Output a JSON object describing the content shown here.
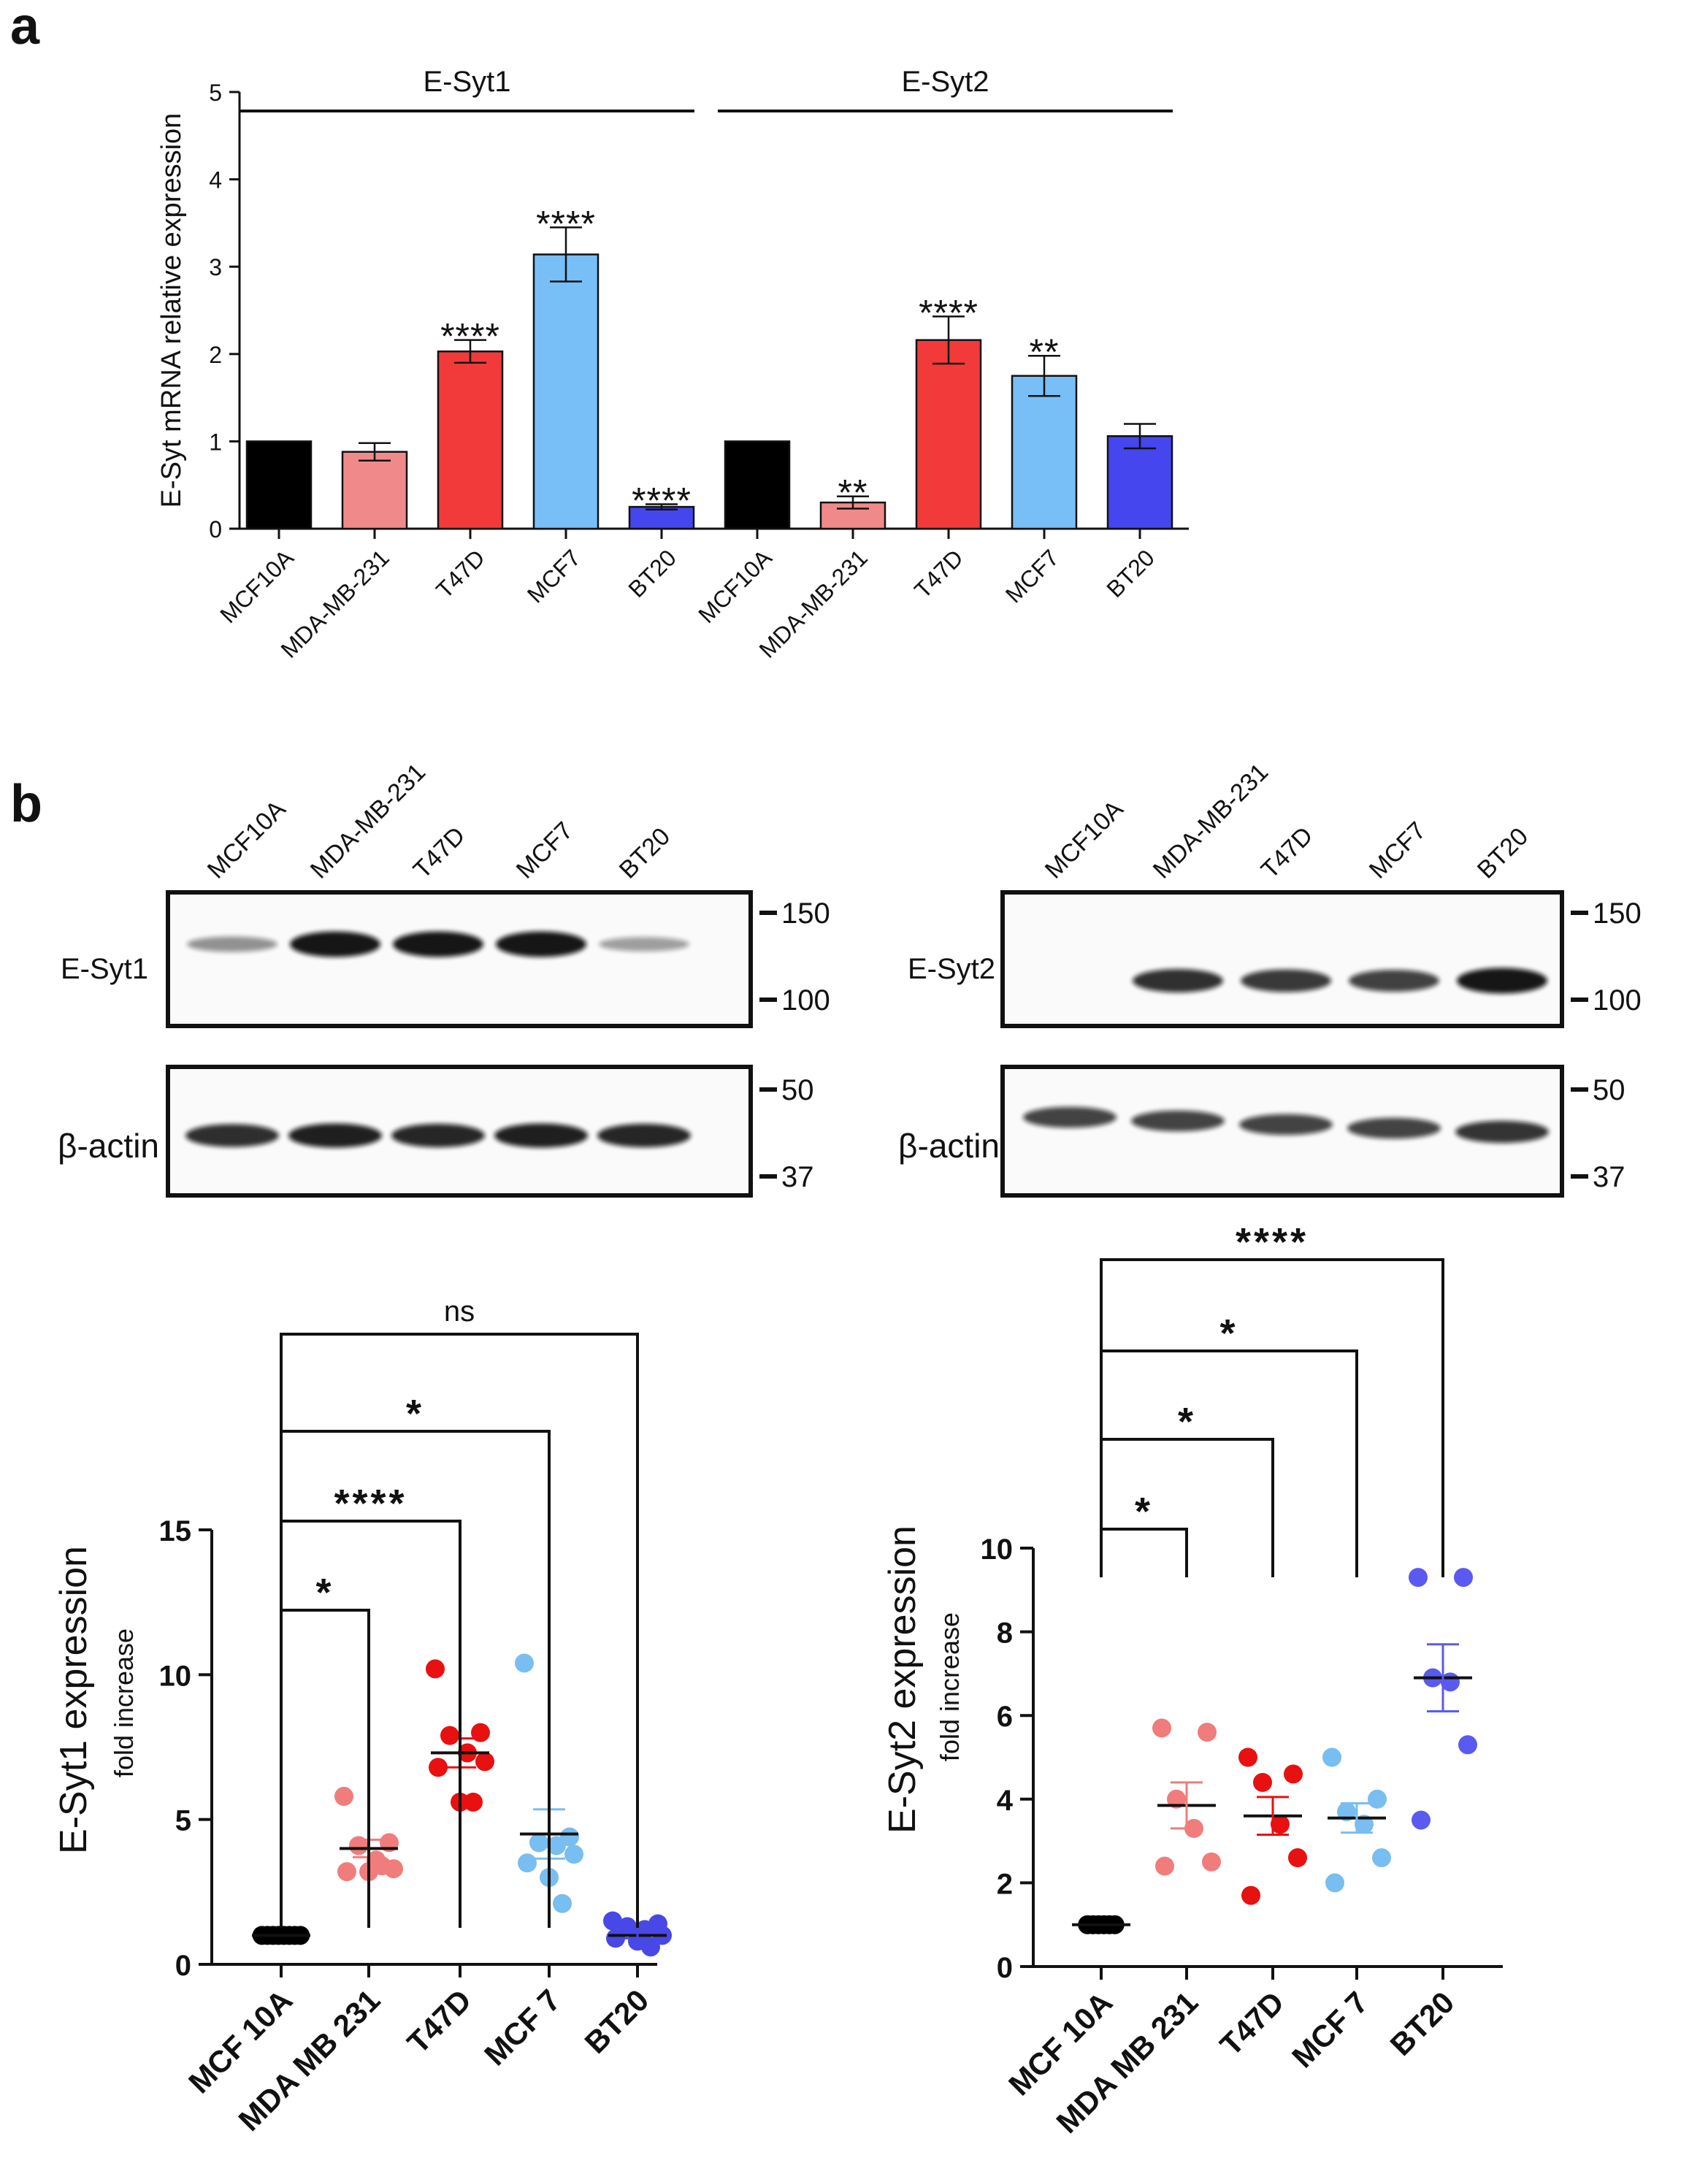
{
  "panel_labels": {
    "a": "a",
    "b": "b"
  },
  "colors": {
    "MCF10A": "#000000",
    "MDA-MB-231": "#f08a8a",
    "T47D": "#f23a3a",
    "MCF7": "#79bff7",
    "BT20": "#4646ee",
    "dot_MCF10A": "#000000",
    "dot_MDA": "#f07c7c",
    "dot_T47D": "#e81010",
    "dot_MCF7": "#78bef0",
    "dot_BT20_left": "#4848e6",
    "dot_BT20_right": "#5a5af0"
  },
  "chart_data": [
    {
      "id": "panel-a",
      "type": "bar",
      "ylabel": "E-Syt mRNA relative expression",
      "ylim": [
        0,
        5
      ],
      "yticks": [
        "0",
        "1",
        "2",
        "3",
        "4",
        "5"
      ],
      "groups": [
        {
          "name": "E-Syt1",
          "categories": [
            "MCF10A",
            "MDA-MB-231",
            "T47D",
            "MCF7",
            "BT20"
          ],
          "values": [
            1.0,
            0.88,
            2.03,
            3.14,
            0.25
          ],
          "errors": [
            0,
            0.1,
            0.13,
            0.31,
            0.03
          ],
          "significance": [
            "",
            "",
            "****",
            "****",
            "****"
          ]
        },
        {
          "name": "E-Syt2",
          "categories": [
            "MCF10A",
            "MDA-MB-231",
            "T47D",
            "MCF7",
            "BT20"
          ],
          "values": [
            1.0,
            0.3,
            2.16,
            1.75,
            1.06
          ],
          "errors": [
            0,
            0.07,
            0.27,
            0.23,
            0.14
          ],
          "significance": [
            "",
            "**",
            "****",
            "**",
            ""
          ]
        }
      ]
    },
    {
      "id": "panel-b-left",
      "type": "scatter",
      "ylabel": "E-Syt1 expression",
      "ysublabel": "fold increase",
      "ylim": [
        0,
        15
      ],
      "yticks": [
        "0",
        "5",
        "10",
        "15"
      ],
      "categories": [
        "MCF 10A",
        "MDA MB 231",
        "T47D",
        "MCF 7",
        "BT20"
      ],
      "points": [
        [
          1,
          1,
          1,
          1,
          1,
          1,
          1,
          1
        ],
        [
          5.8,
          4.2,
          4.1,
          3.6,
          3.3,
          3.2,
          3.2,
          3.4
        ],
        [
          10.2,
          8.0,
          7.9,
          7.3,
          7.0,
          6.8,
          5.6,
          5.6
        ],
        [
          10.4,
          4.4,
          4.2,
          4.1,
          3.8,
          3.5,
          3.0,
          2.1
        ],
        [
          1.5,
          1.4,
          1.3,
          1.2,
          1.0,
          0.9,
          0.8,
          0.6
        ]
      ],
      "means": [
        1.0,
        4.0,
        7.3,
        4.5,
        1.0
      ],
      "sems": [
        0,
        0.3,
        0.5,
        0.85,
        0.1
      ],
      "comparisons": [
        {
          "to": "MDA MB 231",
          "label": "*"
        },
        {
          "to": "T47D",
          "label": "****"
        },
        {
          "to": "MCF 7",
          "label": "*"
        },
        {
          "to": "BT20",
          "label": "ns"
        }
      ]
    },
    {
      "id": "panel-b-right",
      "type": "scatter",
      "ylabel": "E-Syt2 expression",
      "ysublabel": "fold increase",
      "ylim": [
        0,
        10
      ],
      "yticks": [
        "0",
        "2",
        "4",
        "6",
        "8",
        "10"
      ],
      "categories": [
        "MCF 10A",
        "MDA MB 231",
        "T47D",
        "MCF 7",
        "BT20"
      ],
      "points": [
        [
          1,
          1,
          1,
          1,
          1,
          1
        ],
        [
          5.7,
          5.6,
          4.0,
          3.3,
          2.5,
          2.4
        ],
        [
          5.0,
          4.6,
          4.4,
          3.4,
          2.6,
          1.7
        ],
        [
          5.0,
          4.0,
          3.7,
          3.4,
          2.6,
          2.0
        ],
        [
          9.3,
          9.3,
          6.9,
          6.8,
          5.3,
          3.5
        ]
      ],
      "means": [
        1.0,
        3.85,
        3.6,
        3.55,
        6.9
      ],
      "sems": [
        0,
        0.55,
        0.45,
        0.35,
        0.8
      ],
      "comparisons": [
        {
          "to": "MDA MB 231",
          "label": "*"
        },
        {
          "to": "T47D",
          "label": "*"
        },
        {
          "to": "MCF 7",
          "label": "*"
        },
        {
          "to": "BT20",
          "label": "****"
        }
      ]
    }
  ],
  "western_blots": [
    {
      "id": "blot-left",
      "lanes": [
        "MCF10A",
        "MDA-MB-231",
        "T47D",
        "MCF7",
        "BT20"
      ],
      "target_label": "E-Syt1",
      "loading_label": "β-actin",
      "target_markers": [
        "150",
        "100"
      ],
      "loading_markers": [
        "50",
        "37"
      ],
      "target_intensity": [
        0.25,
        0.95,
        0.95,
        0.95,
        0.18
      ],
      "loading_intensity": [
        0.85,
        0.95,
        0.9,
        0.95,
        0.9
      ]
    },
    {
      "id": "blot-right",
      "lanes": [
        "MCF10A",
        "MDA-MB-231",
        "T47D",
        "MCF7",
        "BT20"
      ],
      "target_label": "E-Syt2",
      "loading_label": "β-actin",
      "target_markers": [
        "150",
        "100"
      ],
      "loading_markers": [
        "50",
        "37"
      ],
      "target_intensity": [
        0.05,
        0.8,
        0.75,
        0.7,
        0.95
      ],
      "loading_intensity": [
        0.7,
        0.7,
        0.7,
        0.7,
        0.8
      ]
    }
  ]
}
